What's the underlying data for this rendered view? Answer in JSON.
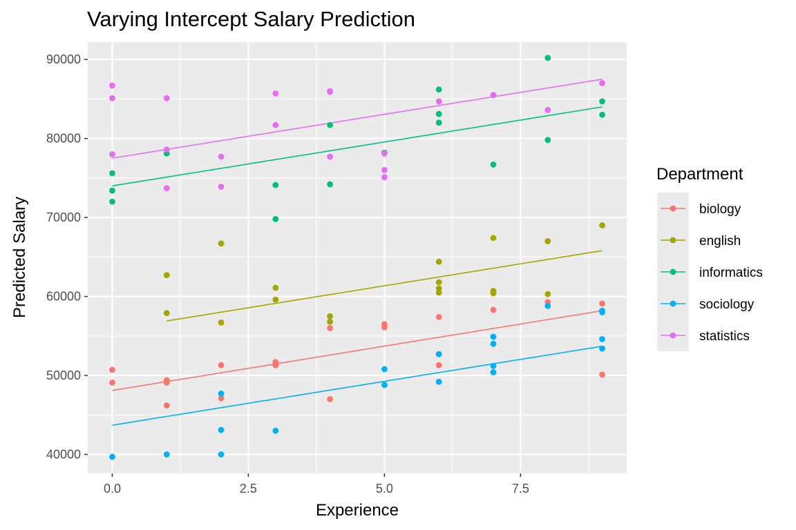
{
  "chart_data": {
    "type": "scatter",
    "title": "Varying Intercept Salary Prediction",
    "xlabel": "Experience",
    "ylabel": "Predicted Salary",
    "xlim": [
      -0.45,
      9.45
    ],
    "ylim": [
      37600,
      92200
    ],
    "x_ticks": [
      0,
      2.5,
      5,
      7.5
    ],
    "x_tick_labels": [
      "0.0",
      "2.5",
      "5.0",
      "7.5"
    ],
    "y_ticks": [
      40000,
      50000,
      60000,
      70000,
      80000,
      90000
    ],
    "y_tick_labels": [
      "40000",
      "50000",
      "60000",
      "70000",
      "80000",
      "90000"
    ],
    "grid": true,
    "legend": {
      "title": "Department",
      "position": "right"
    },
    "series": [
      {
        "name": "biology",
        "color": "#F8766D",
        "line": {
          "x": [
            0,
            9
          ],
          "y": [
            48100,
            58200
          ]
        },
        "points": [
          [
            0,
            50700
          ],
          [
            0,
            49100
          ],
          [
            1,
            49400
          ],
          [
            1,
            49100
          ],
          [
            1,
            46200
          ],
          [
            2,
            51300
          ],
          [
            2,
            47100
          ],
          [
            3,
            51700
          ],
          [
            3,
            51300
          ],
          [
            4,
            56000
          ],
          [
            4,
            47000
          ],
          [
            5,
            56500
          ],
          [
            5,
            56100
          ],
          [
            6,
            57400
          ],
          [
            6,
            51300
          ],
          [
            7,
            58300
          ],
          [
            8,
            59300
          ],
          [
            9,
            59100
          ],
          [
            9,
            50100
          ]
        ]
      },
      {
        "name": "english",
        "color": "#A3A500",
        "line": {
          "x": [
            1,
            9
          ],
          "y": [
            56900,
            65800
          ]
        },
        "points": [
          [
            1,
            62700
          ],
          [
            1,
            57900
          ],
          [
            2,
            66700
          ],
          [
            2,
            56700
          ],
          [
            3,
            61100
          ],
          [
            3,
            59600
          ],
          [
            4,
            57500
          ],
          [
            4,
            56800
          ],
          [
            6,
            64400
          ],
          [
            6,
            61800
          ],
          [
            6,
            61000
          ],
          [
            6,
            60500
          ],
          [
            7,
            67400
          ],
          [
            7,
            60700
          ],
          [
            7,
            60400
          ],
          [
            8,
            67000
          ],
          [
            8,
            60300
          ],
          [
            9,
            69000
          ]
        ]
      },
      {
        "name": "informatics",
        "color": "#00BF7D",
        "line": {
          "x": [
            0,
            9
          ],
          "y": [
            74000,
            84000
          ]
        },
        "points": [
          [
            0,
            75600
          ],
          [
            0,
            73400
          ],
          [
            0,
            72000
          ],
          [
            1,
            78100
          ],
          [
            3,
            74100
          ],
          [
            3,
            69800
          ],
          [
            4,
            81700
          ],
          [
            4,
            74200
          ],
          [
            5,
            78200
          ],
          [
            6,
            86200
          ],
          [
            6,
            83100
          ],
          [
            6,
            82000
          ],
          [
            7,
            85500
          ],
          [
            7,
            76700
          ],
          [
            8,
            90200
          ],
          [
            8,
            79800
          ],
          [
            9,
            84700
          ],
          [
            9,
            83000
          ]
        ]
      },
      {
        "name": "sociology",
        "color": "#00B0F6",
        "line": {
          "x": [
            0,
            9
          ],
          "y": [
            43700,
            53700
          ]
        },
        "points": [
          [
            0,
            39700
          ],
          [
            1,
            40000
          ],
          [
            2,
            47700
          ],
          [
            2,
            43100
          ],
          [
            2,
            40000
          ],
          [
            3,
            43000
          ],
          [
            5,
            50800
          ],
          [
            5,
            48800
          ],
          [
            6,
            52700
          ],
          [
            6,
            49200
          ],
          [
            7,
            54900
          ],
          [
            7,
            54000
          ],
          [
            7,
            51200
          ],
          [
            7,
            50400
          ],
          [
            8,
            58800
          ],
          [
            9,
            58200
          ],
          [
            9,
            58000
          ],
          [
            9,
            54600
          ],
          [
            9,
            53400
          ]
        ]
      },
      {
        "name": "statistics",
        "color": "#E76BF3",
        "line": {
          "x": [
            0,
            9
          ],
          "y": [
            77500,
            87500
          ]
        },
        "points": [
          [
            0,
            86700
          ],
          [
            0,
            85100
          ],
          [
            0,
            78000
          ],
          [
            1,
            85100
          ],
          [
            1,
            78600
          ],
          [
            1,
            73700
          ],
          [
            2,
            77700
          ],
          [
            2,
            73900
          ],
          [
            3,
            85700
          ],
          [
            3,
            81700
          ],
          [
            4,
            86000
          ],
          [
            4,
            85900
          ],
          [
            4,
            77700
          ],
          [
            5,
            78100
          ],
          [
            5,
            76000
          ],
          [
            5,
            75100
          ],
          [
            6,
            84700
          ],
          [
            7,
            85500
          ],
          [
            8,
            83600
          ],
          [
            9,
            87000
          ]
        ]
      }
    ]
  }
}
